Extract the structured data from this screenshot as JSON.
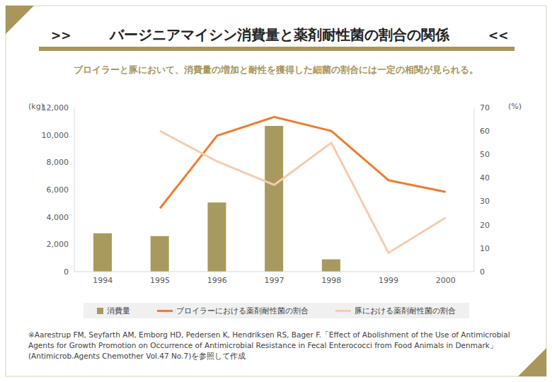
{
  "chart_data": {
    "type": "bar",
    "title": "バージニアマイシン消費量と薬剤耐性菌の割合の関係",
    "title_marks": [
      ">>",
      "<<"
    ],
    "subtitle": "ブロイラーと豚において、消費量の増加と耐性を獲得した細菌の割合には一定の相関が見られる。",
    "y_label": "(kg)",
    "y2_label": "(%)",
    "categories": [
      "1994",
      "1995",
      "1996",
      "1997",
      "1998",
      "1999",
      "2000"
    ],
    "series": [
      {
        "name": "消費量",
        "type": "bar",
        "color": "#a89a5e",
        "values": [
          2800,
          2600,
          5050,
          10650,
          900,
          null,
          null
        ]
      },
      {
        "name": "ブロイラーにおける薬剤耐性菌の割合",
        "type": "line",
        "axis": "y2",
        "color": "#ed7d31",
        "values": [
          null,
          27,
          58,
          66,
          60,
          39,
          34
        ]
      },
      {
        "name": "豚における薬剤耐性菌の割合",
        "type": "line",
        "axis": "y2",
        "color": "#f8cbad",
        "values": [
          null,
          60,
          47,
          37,
          55,
          8,
          23
        ]
      }
    ],
    "ylim": [
      0,
      12000
    ],
    "yticks": [
      0,
      {
        "value": 2000,
        "label": "2,000"
      },
      {
        "value": 4000,
        "label": "4,000"
      },
      {
        "value": 6000,
        "label": "6,000"
      },
      {
        "value": 8000,
        "label": "8,000"
      },
      {
        "value": 10000,
        "label": "10,000"
      },
      {
        "value": 12000,
        "label": "12,000"
      }
    ],
    "y2lim": [
      0,
      70
    ],
    "y2ticks": [
      0,
      10,
      20,
      30,
      40,
      50,
      60,
      70
    ],
    "grid": false,
    "legend": "bottom",
    "note": "※Aarestrup FM, Seyfarth AM, Emborg HD, Pedersen K, Hendriksen RS, Bager F.「Effect of Abolishment of the Use of Antimicrobial Agents for Growth Promotion on Occurrence of Antimicrobial Resistance in Fecal Enterococci from Food Animals in Denmark」(Antimicrob.Agents Chemother Vol.47 No.7)を参照して作成"
  }
}
